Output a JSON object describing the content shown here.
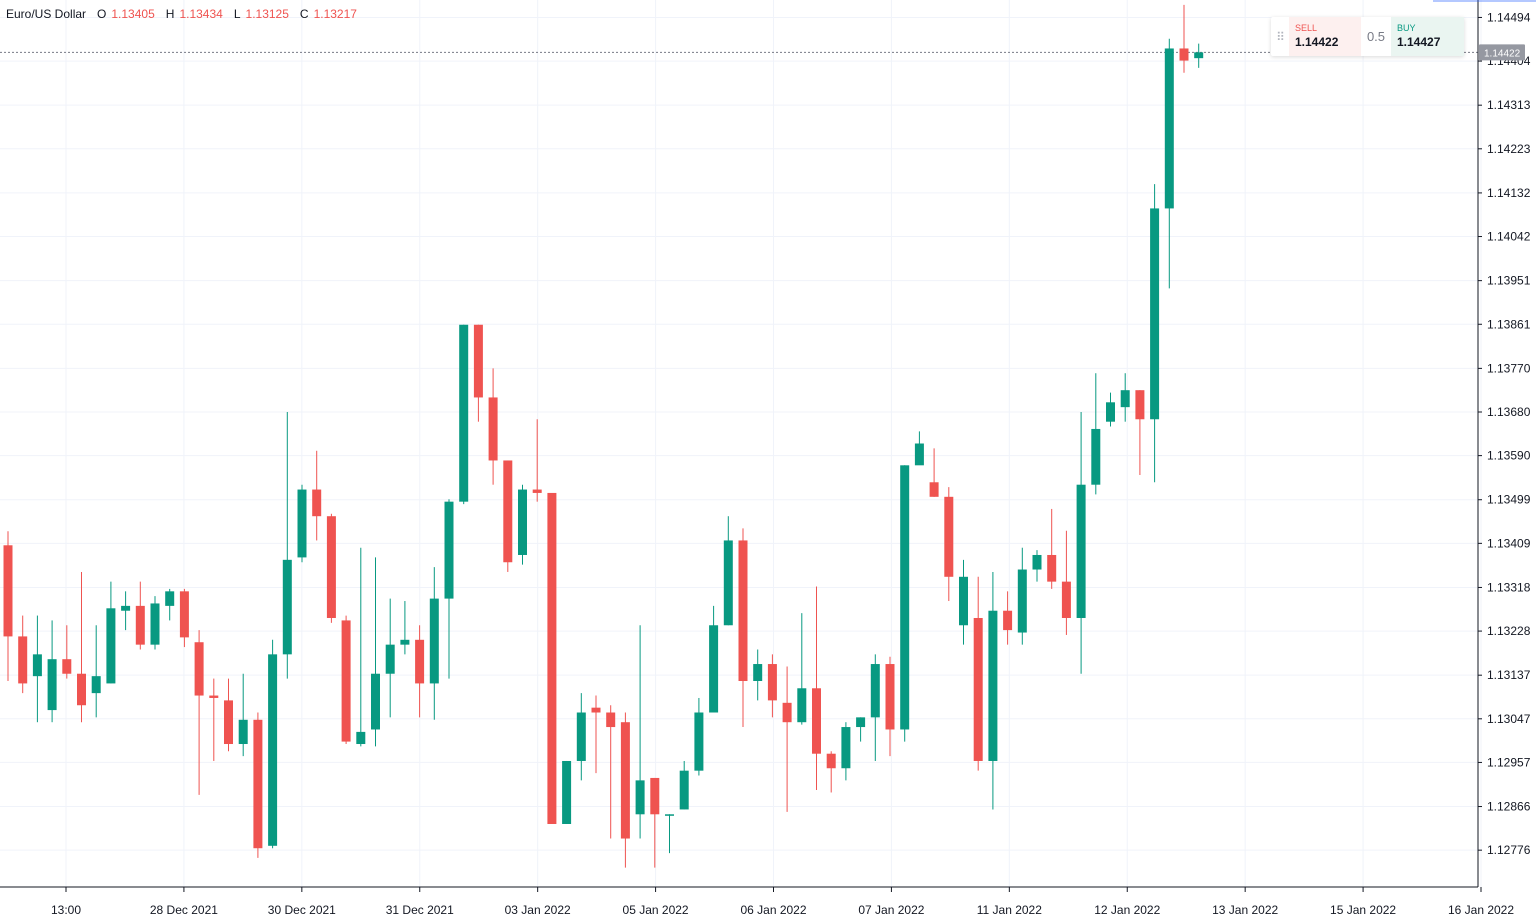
{
  "legend": {
    "symbol": "Euro/US Dollar",
    "open_label": "O",
    "open": "1.13405",
    "high_label": "H",
    "high": "1.13434",
    "low_label": "L",
    "low": "1.13125",
    "close_label": "C",
    "close": "1.13217"
  },
  "trade": {
    "sell_label": "SELL",
    "sell_price": "1.14422",
    "spread": "0.5",
    "buy_label": "BUY",
    "buy_price": "1.14427"
  },
  "colors": {
    "up": "#089981",
    "down": "#ef5350",
    "grid": "#f0f3fa",
    "axis": "#131722",
    "price_label_bg": "#9598a1"
  },
  "chart_data": {
    "type": "candlestick",
    "title": "Euro/US Dollar",
    "price_axis_ticks": [
      "1.14494",
      "1.14404",
      "1.14313",
      "1.14223",
      "1.14132",
      "1.14042",
      "1.13951",
      "1.13861",
      "1.13770",
      "1.13680",
      "1.13590",
      "1.13499",
      "1.13409",
      "1.13318",
      "1.13228",
      "1.13137",
      "1.13047",
      "1.12957",
      "1.12866",
      "1.12776"
    ],
    "time_axis_ticks": [
      "13:00",
      "28 Dec 2021",
      "30 Dec 2021",
      "31 Dec 2021",
      "03 Jan 2022",
      "05 Jan 2022",
      "06 Jan 2022",
      "07 Jan 2022",
      "11 Jan 2022",
      "12 Jan 2022",
      "13 Jan 2022",
      "15 Jan 2022",
      "16 Jan 2022"
    ],
    "last_price": "1.14422",
    "ylim": [
      1.127,
      1.1453
    ],
    "grid": true,
    "candles": [
      [
        1.13405,
        1.13434,
        1.13125,
        1.13217
      ],
      [
        1.13217,
        1.1326,
        1.131,
        1.1312
      ],
      [
        1.13135,
        1.1326,
        1.1304,
        1.1318
      ],
      [
        1.13065,
        1.1325,
        1.1304,
        1.1317
      ],
      [
        1.1317,
        1.1324,
        1.1313,
        1.1314
      ],
      [
        1.1314,
        1.1335,
        1.1304,
        1.13075
      ],
      [
        1.131,
        1.1324,
        1.1305,
        1.13135
      ],
      [
        1.1312,
        1.1333,
        1.1312,
        1.13275
      ],
      [
        1.1327,
        1.1331,
        1.1323,
        1.1328
      ],
      [
        1.1328,
        1.1333,
        1.1319,
        1.132
      ],
      [
        1.132,
        1.133,
        1.1319,
        1.13285
      ],
      [
        1.1328,
        1.13315,
        1.1325,
        1.1331
      ],
      [
        1.1331,
        1.13315,
        1.13195,
        1.13215
      ],
      [
        1.13205,
        1.1323,
        1.1289,
        1.13095
      ],
      [
        1.13095,
        1.1313,
        1.1296,
        1.1309
      ],
      [
        1.13085,
        1.1313,
        1.1298,
        1.12995
      ],
      [
        1.12995,
        1.1314,
        1.1297,
        1.13045
      ],
      [
        1.13045,
        1.1306,
        1.1276,
        1.1278
      ],
      [
        1.12785,
        1.1321,
        1.1278,
        1.1318
      ],
      [
        1.1318,
        1.1368,
        1.1313,
        1.13375
      ],
      [
        1.1338,
        1.1353,
        1.1337,
        1.1352
      ],
      [
        1.1352,
        1.136,
        1.13415,
        1.13465
      ],
      [
        1.13465,
        1.1347,
        1.13245,
        1.13255
      ],
      [
        1.1325,
        1.1326,
        1.12995,
        1.13
      ],
      [
        1.12995,
        1.134,
        1.1299,
        1.1302
      ],
      [
        1.13025,
        1.1338,
        1.1299,
        1.1314
      ],
      [
        1.1314,
        1.13295,
        1.1305,
        1.132
      ],
      [
        1.132,
        1.1329,
        1.1318,
        1.1321
      ],
      [
        1.1321,
        1.1324,
        1.1305,
        1.1312
      ],
      [
        1.1312,
        1.1336,
        1.13045,
        1.13295
      ],
      [
        1.13295,
        1.135,
        1.1313,
        1.13495
      ],
      [
        1.13495,
        1.1386,
        1.1349,
        1.1386
      ],
      [
        1.1386,
        1.1386,
        1.1366,
        1.1371
      ],
      [
        1.1371,
        1.1377,
        1.1353,
        1.1358
      ],
      [
        1.1358,
        1.1358,
        1.1335,
        1.1337
      ],
      [
        1.13385,
        1.1353,
        1.13365,
        1.1352
      ],
      [
        1.1352,
        1.13665,
        1.13495,
        1.13513
      ],
      [
        1.13513,
        1.13513,
        1.1283,
        1.1283
      ],
      [
        1.1283,
        1.1296,
        1.1283,
        1.1296
      ],
      [
        1.1296,
        1.131,
        1.1292,
        1.1306
      ],
      [
        1.1307,
        1.13095,
        1.12935,
        1.1306
      ],
      [
        1.1306,
        1.13075,
        1.128,
        1.1303
      ],
      [
        1.1304,
        1.1306,
        1.1274,
        1.128
      ],
      [
        1.1285,
        1.1324,
        1.128,
        1.1292
      ],
      [
        1.12925,
        1.12925,
        1.1274,
        1.1285
      ],
      [
        1.1285,
        1.1285,
        1.1277,
        1.1285
      ],
      [
        1.1286,
        1.1296,
        1.1286,
        1.1294
      ],
      [
        1.1294,
        1.1309,
        1.1293,
        1.1306
      ],
      [
        1.1306,
        1.1328,
        1.1306,
        1.1324
      ],
      [
        1.1324,
        1.13465,
        1.1324,
        1.13415
      ],
      [
        1.13415,
        1.1344,
        1.1303,
        1.13125
      ],
      [
        1.13125,
        1.1319,
        1.13085,
        1.1316
      ],
      [
        1.1316,
        1.1318,
        1.1305,
        1.13085
      ],
      [
        1.1308,
        1.13155,
        1.12855,
        1.1304
      ],
      [
        1.1304,
        1.13265,
        1.13035,
        1.1311
      ],
      [
        1.1311,
        1.1332,
        1.129,
        1.12975
      ],
      [
        1.12975,
        1.1298,
        1.12895,
        1.12945
      ],
      [
        1.12945,
        1.1304,
        1.1292,
        1.1303
      ],
      [
        1.1303,
        1.1305,
        1.13,
        1.1305
      ],
      [
        1.1305,
        1.1318,
        1.1296,
        1.1316
      ],
      [
        1.1316,
        1.13175,
        1.1297,
        1.13025
      ],
      [
        1.13025,
        1.1357,
        1.13,
        1.1357
      ],
      [
        1.1357,
        1.1364,
        1.1358,
        1.13615
      ],
      [
        1.13535,
        1.13605,
        1.13505,
        1.13505
      ],
      [
        1.13505,
        1.13525,
        1.1329,
        1.1334
      ],
      [
        1.1324,
        1.13375,
        1.132,
        1.1334
      ],
      [
        1.13255,
        1.1334,
        1.1294,
        1.1296
      ],
      [
        1.1296,
        1.1335,
        1.1286,
        1.1327
      ],
      [
        1.1327,
        1.1331,
        1.132,
        1.1323
      ],
      [
        1.13225,
        1.134,
        1.132,
        1.13355
      ],
      [
        1.13355,
        1.13395,
        1.1333,
        1.13385
      ],
      [
        1.13385,
        1.1348,
        1.13315,
        1.1333
      ],
      [
        1.1333,
        1.13435,
        1.1322,
        1.13255
      ],
      [
        1.13255,
        1.1368,
        1.1314,
        1.1353
      ],
      [
        1.1353,
        1.1376,
        1.1351,
        1.13645
      ],
      [
        1.1366,
        1.1372,
        1.1365,
        1.137
      ],
      [
        1.1369,
        1.1376,
        1.1366,
        1.13725
      ],
      [
        1.13725,
        1.13725,
        1.1355,
        1.13665
      ],
      [
        1.13665,
        1.1415,
        1.13535,
        1.141
      ],
      [
        1.141,
        1.1445,
        1.13935,
        1.1443
      ],
      [
        1.1443,
        1.1452,
        1.1438,
        1.14405
      ],
      [
        1.1441,
        1.1444,
        1.1439,
        1.14422
      ]
    ]
  }
}
